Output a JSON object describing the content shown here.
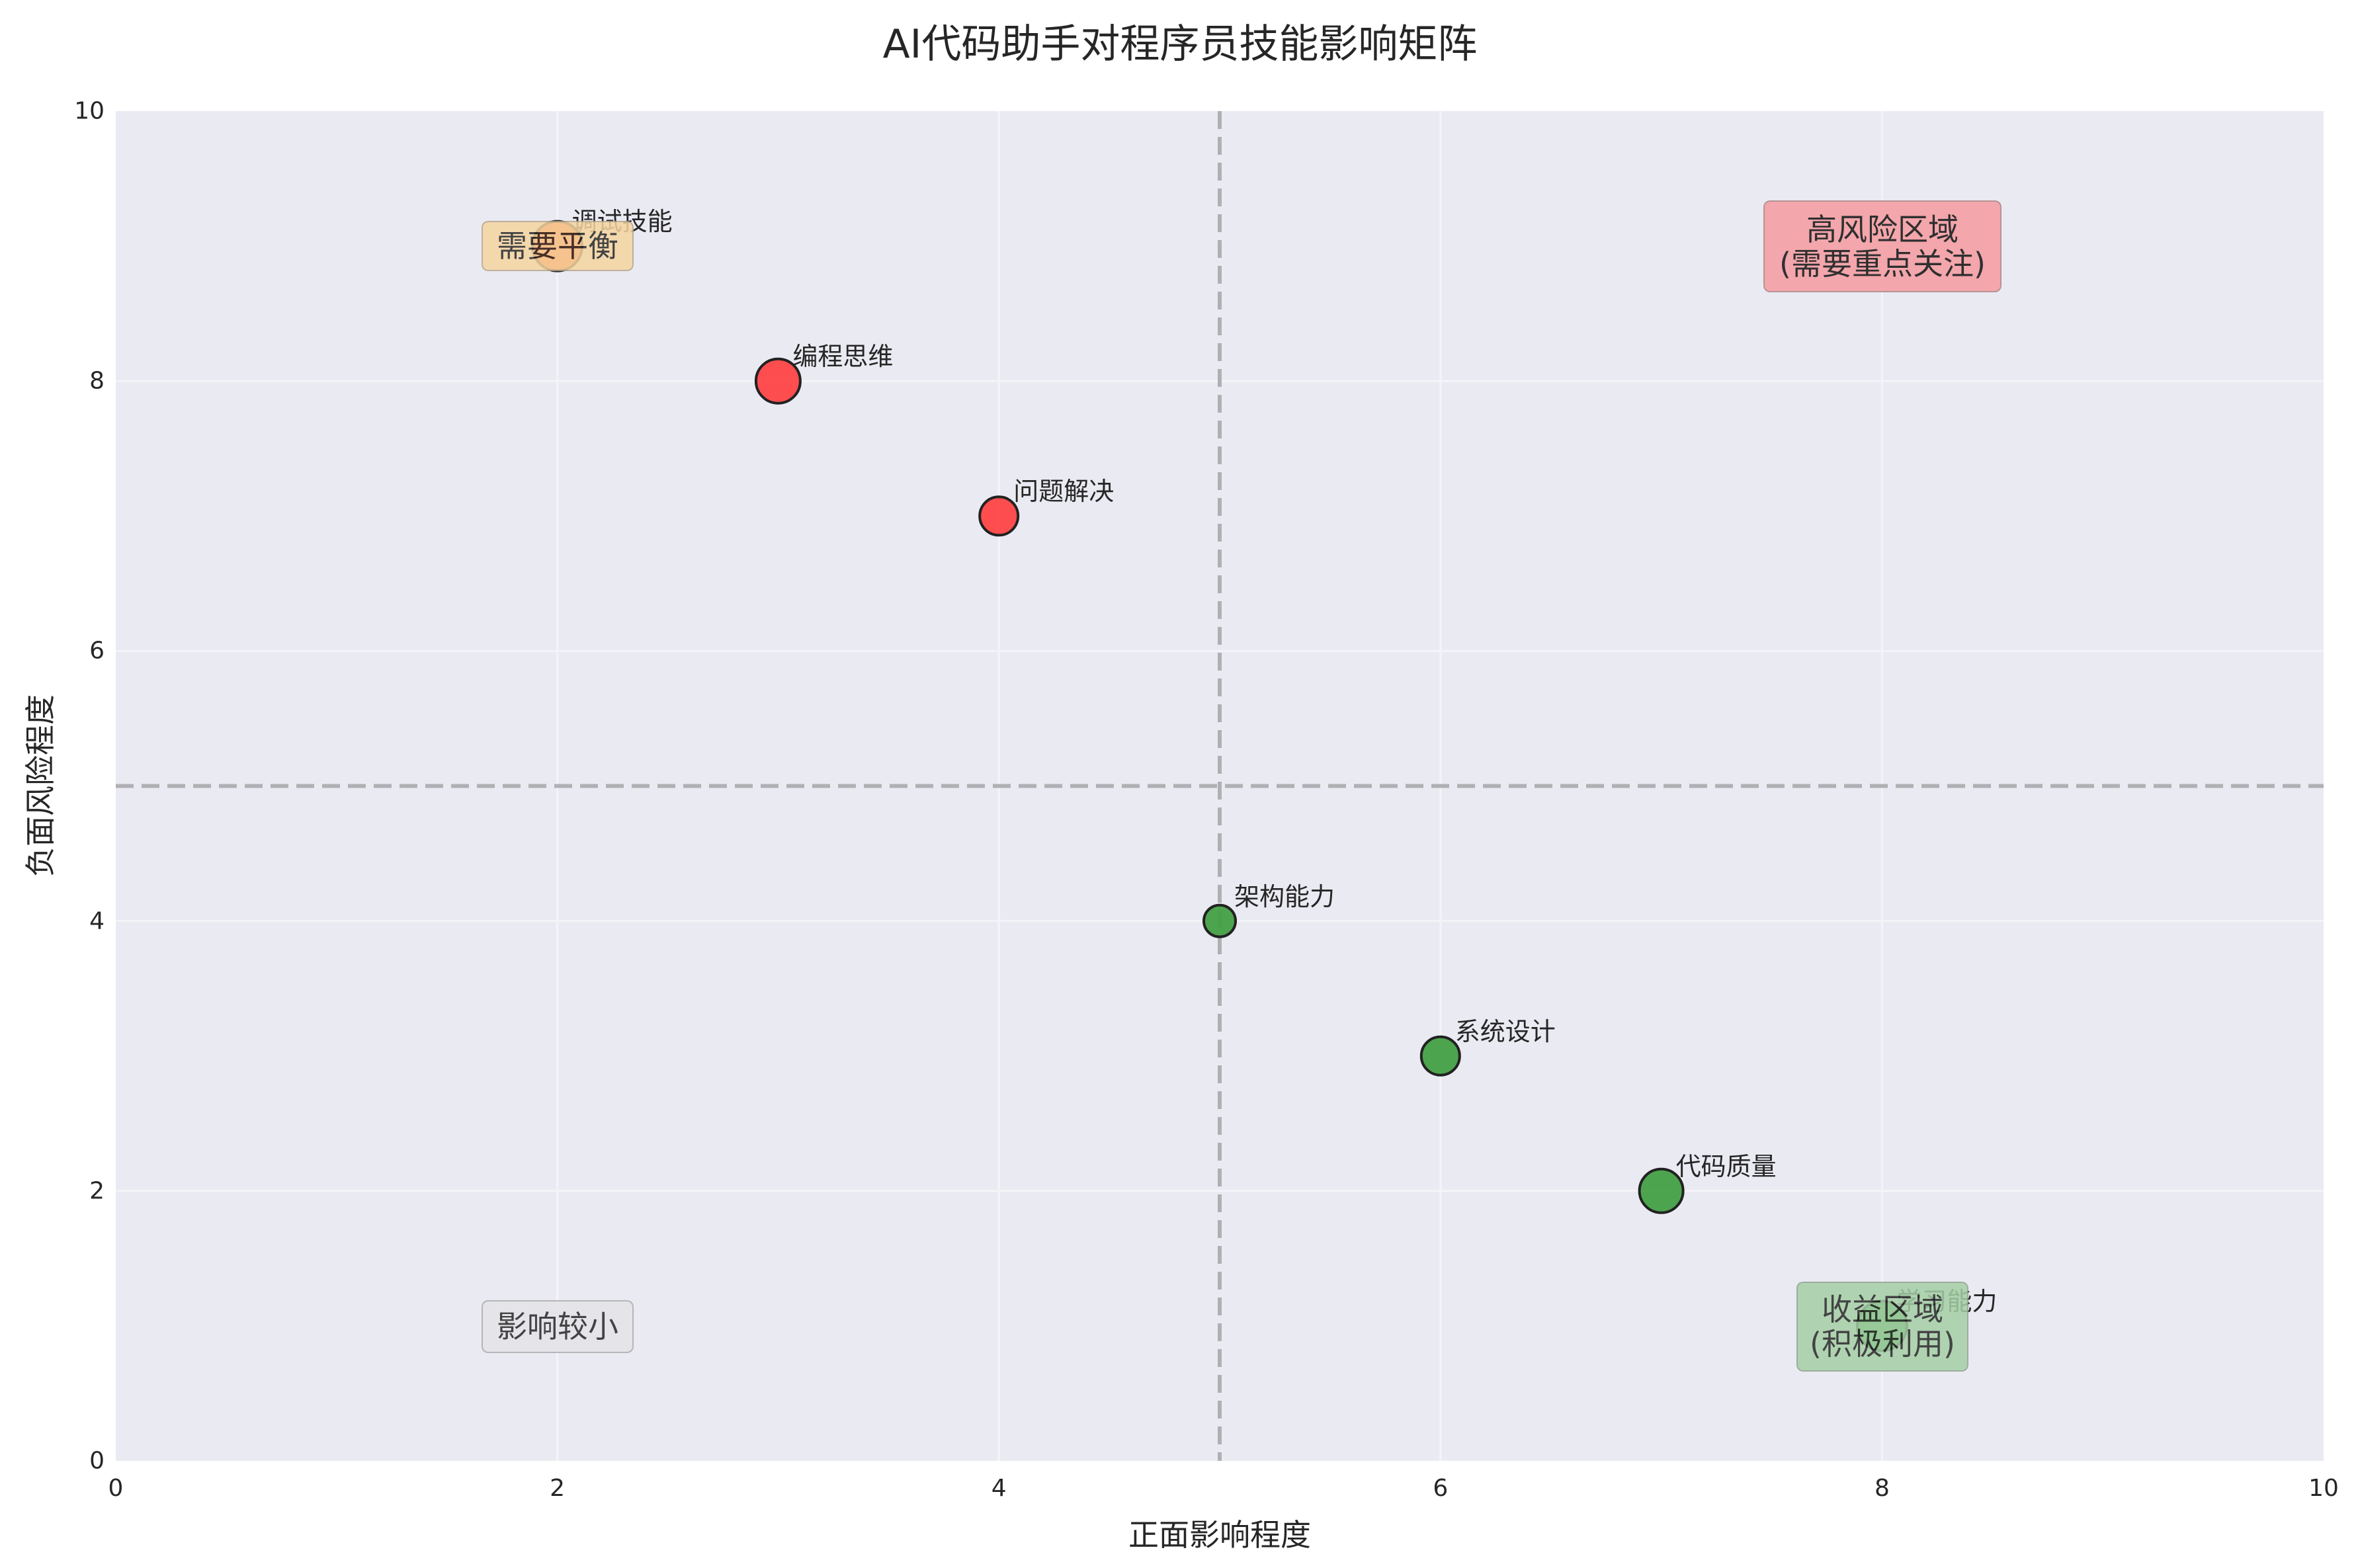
{
  "title": "AI代码助手对程序员技能影响矩阵",
  "axes": {
    "xlabel": "正面影响程度",
    "ylabel": "负面风险程度",
    "xticks": [
      "0",
      "2",
      "4",
      "6",
      "8",
      "10"
    ],
    "yticks": [
      "0",
      "2",
      "4",
      "6",
      "8",
      "10"
    ]
  },
  "zones": {
    "top_left": {
      "line1": "需要平衡",
      "line2": ""
    },
    "top_right": {
      "line1": "高风险区域",
      "line2": "(需要重点关注)"
    },
    "bottom_left": {
      "line1": "影响较小",
      "line2": ""
    },
    "bottom_right": {
      "line1": "收益区域",
      "line2": "(积极利用)"
    }
  },
  "colors": {
    "risk": "#ff3030",
    "balance": "#ff5722",
    "benefit": "#2e8b2e",
    "plot_bg": "#eaeaf2",
    "divider": "#b0b0b4",
    "zone_top_left": "#f5d5a0",
    "zone_top_right": "#f4a3a8",
    "zone_bottom_left": "#e4e4e8",
    "zone_bottom_right": "#a5cfa5"
  },
  "chart_data": {
    "type": "scatter",
    "title": "AI代码助手对程序员技能影响矩阵",
    "xlabel": "正面影响程度",
    "ylabel": "负面风险程度",
    "xlim": [
      0,
      10
    ],
    "ylim": [
      0,
      10
    ],
    "grid": true,
    "quadrant_dividers": {
      "x": 5,
      "y": 5
    },
    "points": [
      {
        "label": "调试技能",
        "x": 2,
        "y": 9,
        "size": 75,
        "color": "#ff5722"
      },
      {
        "label": "编程思维",
        "x": 3,
        "y": 8,
        "size": 67,
        "color": "#ff4444"
      },
      {
        "label": "问题解决",
        "x": 4,
        "y": 7,
        "size": 58,
        "color": "#ff4444"
      },
      {
        "label": "架构能力",
        "x": 5,
        "y": 4,
        "size": 48,
        "color": "#44a044"
      },
      {
        "label": "系统设计",
        "x": 6,
        "y": 3,
        "size": 58,
        "color": "#44a044"
      },
      {
        "label": "代码质量",
        "x": 7,
        "y": 2,
        "size": 66,
        "color": "#44a044"
      },
      {
        "label": "学习能力",
        "x": 8,
        "y": 1,
        "size": 75,
        "color": "#44a044"
      }
    ],
    "annotations": [
      {
        "text": "高风险区域\n(需要重点关注)",
        "x": 8,
        "y": 9
      },
      {
        "text": "需要平衡",
        "x": 2,
        "y": 9
      },
      {
        "text": "影响较小",
        "x": 2,
        "y": 1
      },
      {
        "text": "收益区域\n(积极利用)",
        "x": 8,
        "y": 1
      }
    ]
  }
}
